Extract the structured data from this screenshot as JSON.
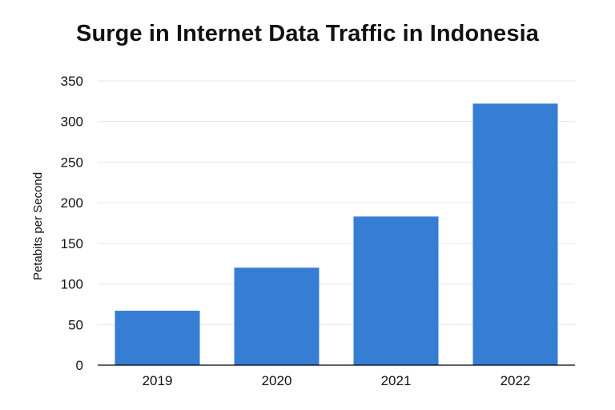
{
  "chart_data": {
    "type": "bar",
    "title": "Surge in Internet Data Traffic in Indonesia",
    "xlabel": "",
    "ylabel": "Petabits per Second",
    "categories": [
      "2019",
      "2020",
      "2021",
      "2022"
    ],
    "values": [
      67,
      120,
      183,
      322
    ],
    "ylim": [
      0,
      350
    ],
    "yticks": [
      0,
      50,
      100,
      150,
      200,
      250,
      300,
      350
    ],
    "ytick_labels": [
      "0",
      "50",
      "100",
      "150",
      "200",
      "250",
      "300",
      "350"
    ],
    "grid": true,
    "colors": {
      "bar": "#367dd4",
      "grid": "#e4e4e4",
      "axis": "#000000"
    }
  }
}
